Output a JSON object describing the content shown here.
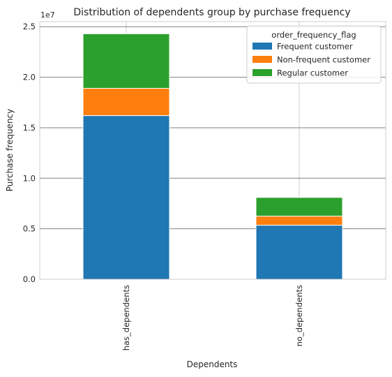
{
  "chart_data": {
    "type": "bar",
    "stacked": true,
    "title": "Distribution of dependents group by purchase frequency",
    "xlabel": "Dependents",
    "ylabel": "Purchase frequency",
    "offset_label": "1e7",
    "categories": [
      "has_dependents",
      "no_dependents"
    ],
    "series": [
      {
        "name": "Frequent customer",
        "color": "#1f77b4",
        "values": [
          16200000,
          5350000
        ]
      },
      {
        "name": "Non-frequent customer",
        "color": "#ff7f0e",
        "values": [
          2700000,
          900000
        ]
      },
      {
        "name": "Regular customer",
        "color": "#2ca02c",
        "values": [
          5400000,
          1850000
        ]
      }
    ],
    "ylim": [
      0,
      25500000
    ],
    "yticks": [
      0,
      5000000,
      10000000,
      15000000,
      20000000,
      25000000
    ],
    "ytick_labels": [
      "0.0",
      "0.5",
      "1.0",
      "1.5",
      "2.0",
      "2.5"
    ],
    "legend_title": "order_frequency_flag",
    "legend_position": "top-right",
    "grid": true
  }
}
